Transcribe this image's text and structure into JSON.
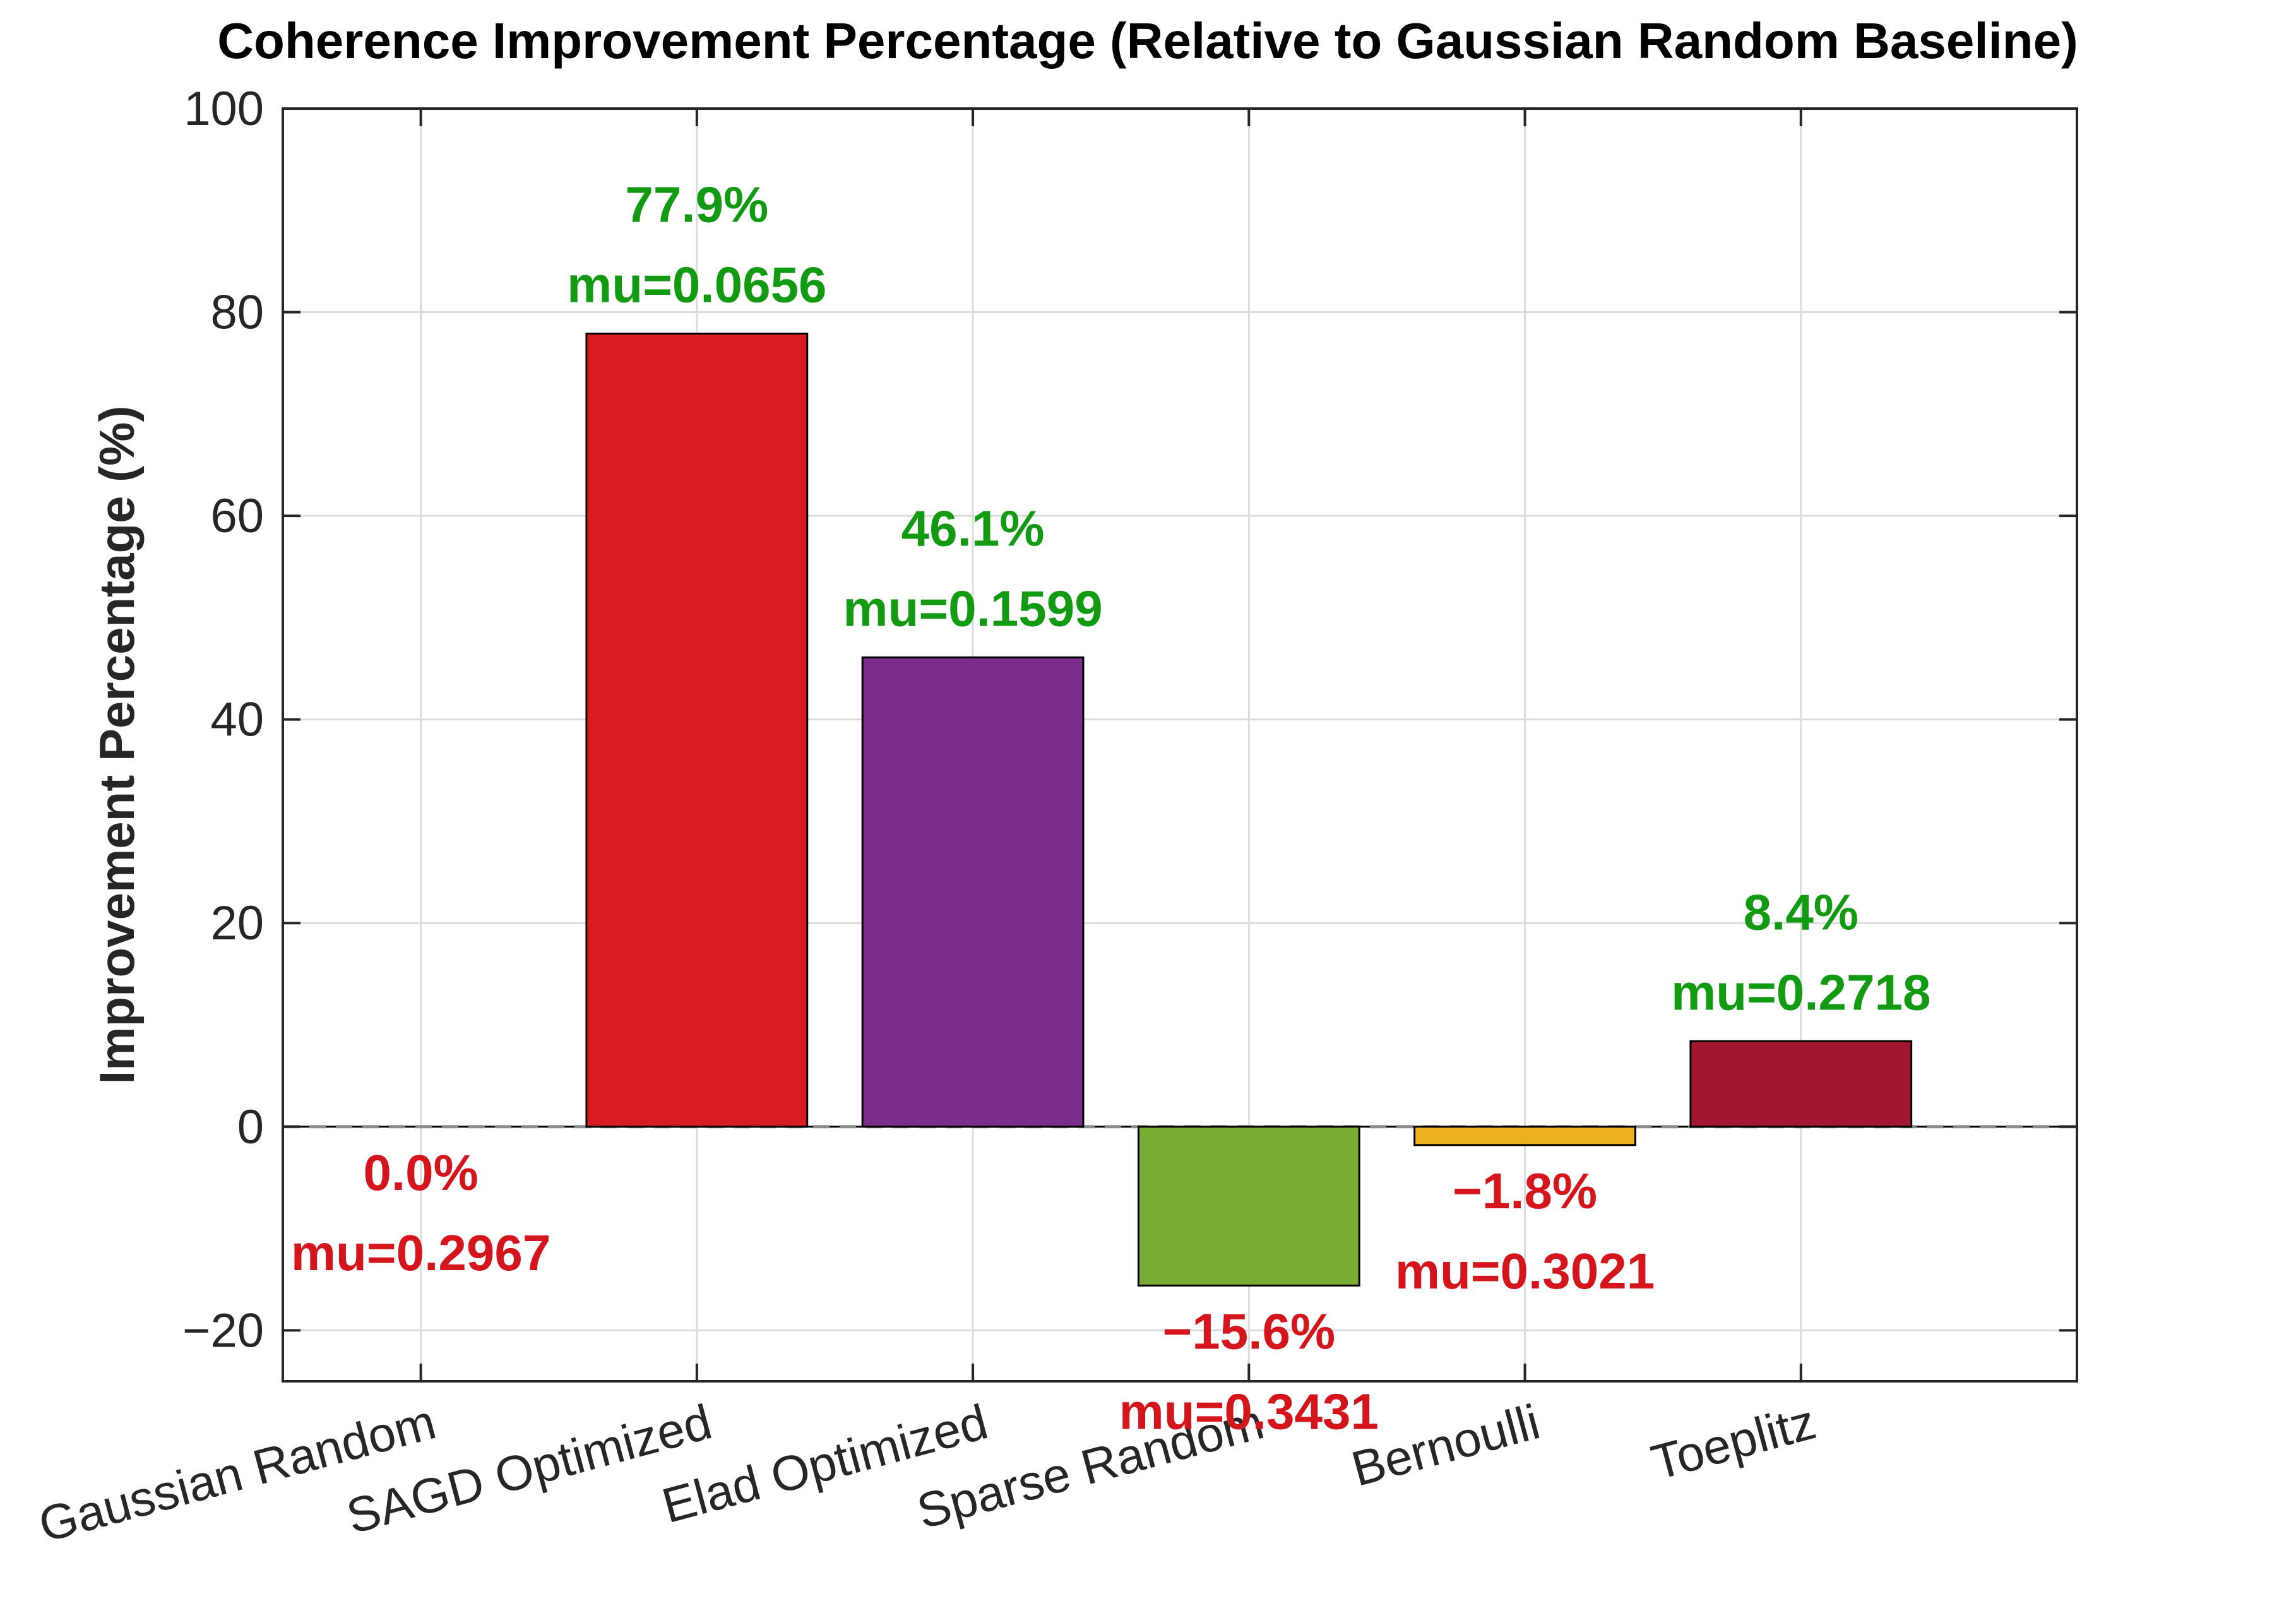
{
  "chart_data": {
    "type": "bar",
    "title": "Coherence Improvement Percentage (Relative to Gaussian Random Baseline)",
    "xlabel": "",
    "ylabel": "Improvement Percentage (%)",
    "ylim": [
      -25,
      100
    ],
    "yticks": [
      -20,
      0,
      20,
      40,
      60,
      80,
      100
    ],
    "ytick_labels": [
      "−20",
      "0",
      "20",
      "40",
      "60",
      "80",
      "100"
    ],
    "grid": true,
    "baseline": 0,
    "categories": [
      "Gaussian Random",
      "SAGD Optimized",
      "Elad Optimized",
      "Sparse Random",
      "Bernoulli",
      "Toeplitz"
    ],
    "values": [
      0.0,
      77.9,
      46.1,
      -15.6,
      -1.8,
      8.4
    ],
    "bar_colors": [
      "#4d7bbf",
      "#d81c1f",
      "#7a2e8a",
      "#7aab32",
      "#edb120",
      "#a2162f"
    ],
    "labels": [
      {
        "pct": "0.0%",
        "mu": "mu=0.2967"
      },
      {
        "pct": "77.9%",
        "mu": "mu=0.0656"
      },
      {
        "pct": "46.1%",
        "mu": "mu=0.1599"
      },
      {
        "pct": "−15.6%",
        "mu": "mu=0.3431"
      },
      {
        "pct": "−1.8%",
        "mu": "mu=0.3021"
      },
      {
        "pct": "8.4%",
        "mu": "mu=0.2718"
      }
    ],
    "positive_label_color": "#139a13",
    "negative_label_color": "#d4151c"
  }
}
